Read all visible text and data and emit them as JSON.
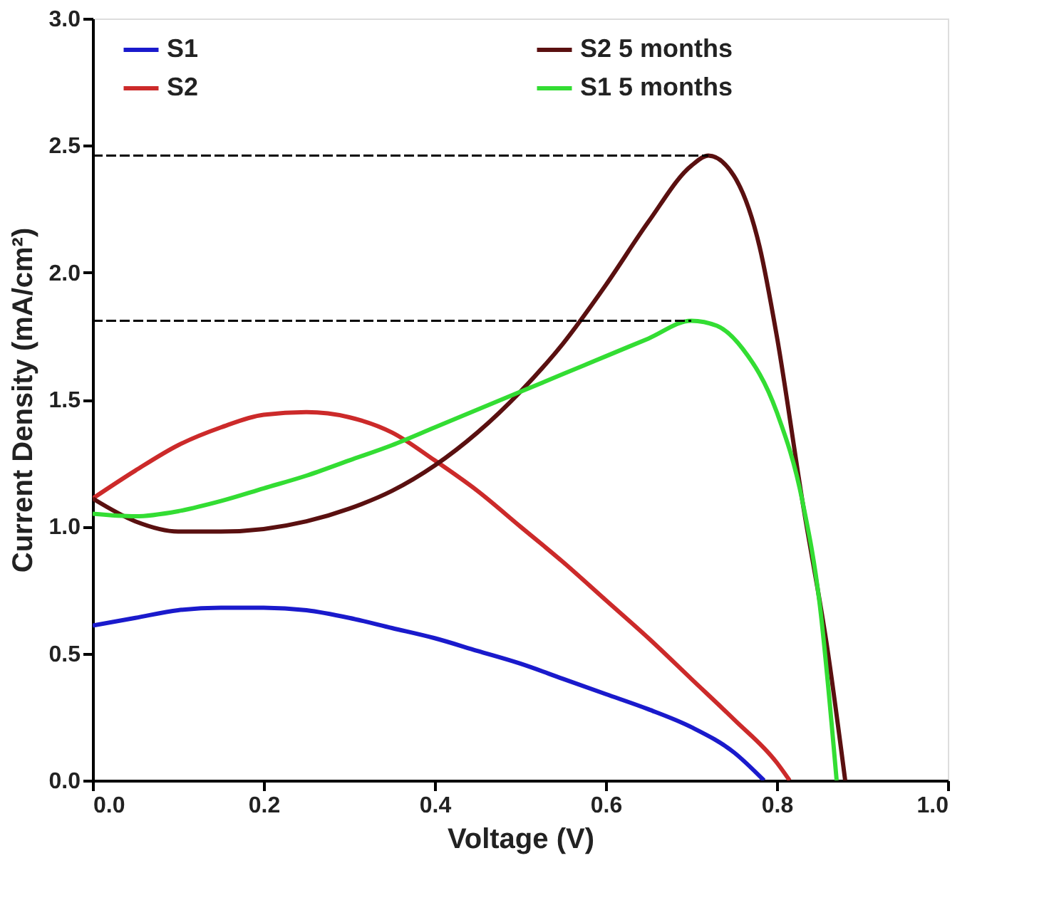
{
  "chart_data": {
    "type": "line",
    "xlabel": "Voltage (V)",
    "ylabel": "Current Density (mA/cm²)",
    "xlim": [
      0,
      1.0
    ],
    "ylim": [
      0,
      3.0
    ],
    "xticks": [
      {
        "value": 0,
        "label": "0.0"
      },
      {
        "value": 0.2,
        "label": "0.2"
      },
      {
        "value": 0.4,
        "label": "0.4"
      },
      {
        "value": 0.6,
        "label": "0.6"
      },
      {
        "value": 0.8,
        "label": "0.8"
      },
      {
        "value": 1.0,
        "label": "1.0"
      }
    ],
    "yticks": [
      {
        "value": 0,
        "label": "0.0"
      },
      {
        "value": 0.5,
        "label": "0.5"
      },
      {
        "value": 1.0,
        "label": "1.0"
      },
      {
        "value": 1.5,
        "label": "1.5"
      },
      {
        "value": 2.0,
        "label": "2.0"
      },
      {
        "value": 2.5,
        "label": "2.5"
      },
      {
        "value": 3.0,
        "label": "3.0"
      }
    ],
    "grid": false,
    "legend": "top",
    "marker": "none",
    "line_style": "solid",
    "series": [
      {
        "name": "S1",
        "color": "#1a1acc",
        "x": [
          0,
          0.05,
          0.1,
          0.15,
          0.2,
          0.25,
          0.3,
          0.35,
          0.4,
          0.45,
          0.5,
          0.55,
          0.6,
          0.65,
          0.7,
          0.75,
          0.785
        ],
        "values": [
          0.61,
          0.64,
          0.67,
          0.68,
          0.68,
          0.67,
          0.64,
          0.6,
          0.56,
          0.51,
          0.46,
          0.4,
          0.34,
          0.28,
          0.21,
          0.11,
          0
        ]
      },
      {
        "name": "S2",
        "color": "#cc2a2a",
        "x": [
          0,
          0.05,
          0.1,
          0.15,
          0.2,
          0.25,
          0.3,
          0.35,
          0.4,
          0.45,
          0.5,
          0.55,
          0.6,
          0.65,
          0.7,
          0.75,
          0.8,
          0.815
        ],
        "values": [
          1.11,
          1.22,
          1.32,
          1.39,
          1.44,
          1.45,
          1.43,
          1.37,
          1.26,
          1.14,
          1.0,
          0.86,
          0.71,
          0.56,
          0.4,
          0.24,
          0.07,
          0
        ]
      },
      {
        "name": "S2 5 months",
        "color": "#5a1010",
        "x": [
          0,
          0.05,
          0.1,
          0.15,
          0.2,
          0.25,
          0.3,
          0.35,
          0.4,
          0.45,
          0.5,
          0.55,
          0.6,
          0.65,
          0.7,
          0.72,
          0.75,
          0.78,
          0.8,
          0.83,
          0.86,
          0.88
        ],
        "values": [
          1.11,
          1.02,
          0.98,
          0.98,
          0.99,
          1.02,
          1.07,
          1.14,
          1.24,
          1.37,
          1.53,
          1.72,
          1.95,
          2.2,
          2.42,
          2.46,
          2.38,
          2.1,
          1.75,
          1.1,
          0.5,
          0
        ]
      },
      {
        "name": "S1 5 months",
        "color": "#33dd33",
        "x": [
          0,
          0.05,
          0.1,
          0.15,
          0.2,
          0.25,
          0.3,
          0.35,
          0.4,
          0.45,
          0.5,
          0.55,
          0.6,
          0.65,
          0.7,
          0.73,
          0.76,
          0.8,
          0.83,
          0.85,
          0.87
        ],
        "values": [
          1.05,
          1.04,
          1.06,
          1.1,
          1.15,
          1.2,
          1.26,
          1.32,
          1.39,
          1.46,
          1.53,
          1.6,
          1.67,
          1.74,
          1.81,
          1.79,
          1.7,
          1.45,
          1.1,
          0.7,
          0
        ]
      },
      {
        "type": "line",
        "line_style": "dashed",
        "color": "#000000",
        "x": [
          0,
          0.72
        ],
        "values": [
          2.46,
          2.46
        ]
      },
      {
        "type": "line",
        "line_style": "dashed",
        "color": "#000000",
        "x": [
          0,
          0.7
        ],
        "values": [
          1.81,
          1.81
        ]
      }
    ]
  }
}
